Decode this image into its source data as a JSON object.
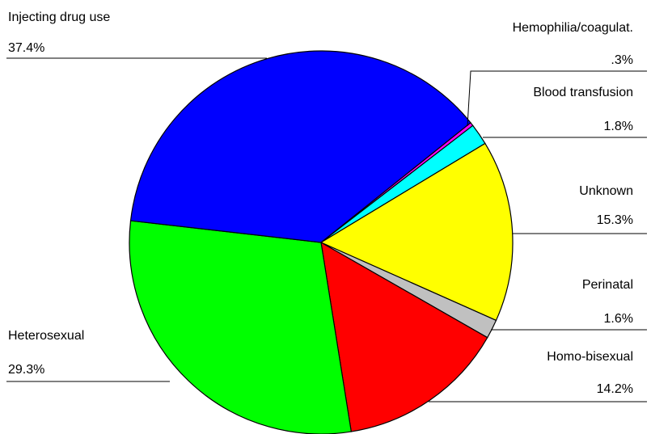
{
  "chart_data": {
    "type": "pie",
    "categories": [
      "Hemophilia/coagulat.",
      "Blood transfusion",
      "Unknown",
      "Perinatal",
      "Homo-bisexual",
      "Heterosexual",
      "Injecting drug use"
    ],
    "values": [
      0.3,
      1.8,
      15.3,
      1.6,
      14.2,
      29.3,
      37.4
    ],
    "value_labels": [
      ".3%",
      "1.8%",
      "15.3%",
      "1.6%",
      "14.2%",
      "29.3%",
      "37.4%"
    ],
    "colors": [
      "#ff00ff",
      "#00ffff",
      "#ffff00",
      "#c0c0c0",
      "#ff0000",
      "#00ff00",
      "#0000ff"
    ]
  }
}
